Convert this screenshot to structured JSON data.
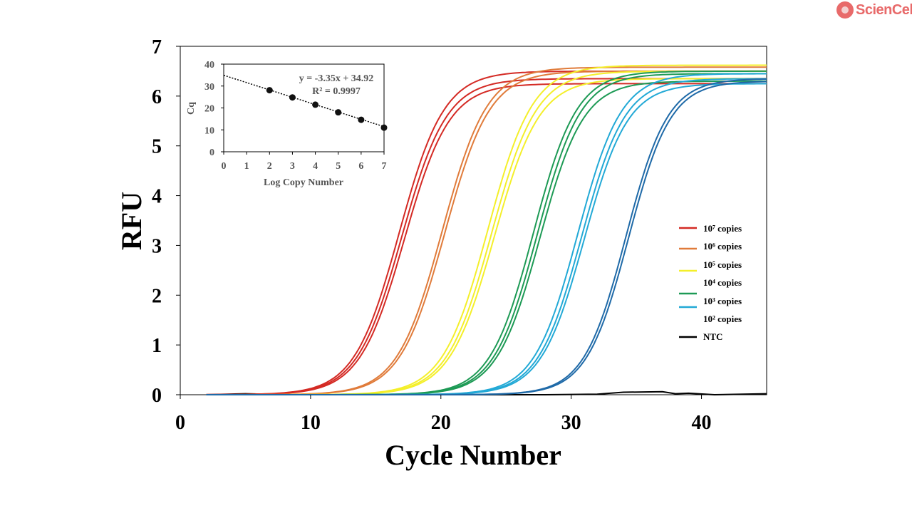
{
  "logo": {
    "text": "ScienCell",
    "color": "#e86a6a"
  },
  "chart_data": [
    {
      "type": "line",
      "xlabel": "Cycle Number",
      "ylabel": "RFU",
      "xlim": [
        0,
        45
      ],
      "ylim": [
        0,
        7
      ],
      "xticks": [
        "0",
        "10",
        "20",
        "30",
        "40"
      ],
      "yticks": [
        "0",
        "1",
        "2",
        "3",
        "4",
        "5",
        "6",
        "7"
      ],
      "grid": false,
      "legend_position": "right",
      "legend": [
        {
          "label": "10⁷ copies",
          "color": "#d42a24"
        },
        {
          "label": "10⁶ copies",
          "color": "#e07b3a"
        },
        {
          "label": "10⁵ copies",
          "color": "#f4ef2a"
        },
        {
          "label": "10⁴ copies",
          "color": null
        },
        {
          "label": "10³ copies",
          "color": "#1d9a55"
        },
        {
          "label": "10² copies",
          "color": "#22a9d6"
        },
        {
          "label": "NTC",
          "color": "#000000"
        }
      ],
      "curve_model": "sigmoid amplification: RFU = plateau / (1 + exp(-slope*(cycle - midpoint)))",
      "series": [
        {
          "group": "red",
          "color": "#d42a24",
          "slope": 0.58,
          "replicates": [
            {
              "midpoint": 16.8,
              "plateau": 6.5
            },
            {
              "midpoint": 17.0,
              "plateau": 6.35
            },
            {
              "midpoint": 17.2,
              "plateau": 6.25
            }
          ]
        },
        {
          "group": "orange",
          "color": "#e07b3a",
          "slope": 0.58,
          "replicates": [
            {
              "midpoint": 20.1,
              "plateau": 6.58
            },
            {
              "midpoint": 20.3,
              "plateau": 6.5
            }
          ]
        },
        {
          "group": "yellow",
          "color": "#f4ef2a",
          "slope": 0.58,
          "replicates": [
            {
              "midpoint": 23.6,
              "plateau": 6.62
            },
            {
              "midpoint": 23.9,
              "plateau": 6.5
            },
            {
              "midpoint": 24.1,
              "plateau": 6.35
            }
          ]
        },
        {
          "group": "green",
          "color": "#1d9a55",
          "slope": 0.6,
          "replicates": [
            {
              "midpoint": 27.1,
              "plateau": 6.5
            },
            {
              "midpoint": 27.4,
              "plateau": 6.45
            },
            {
              "midpoint": 27.6,
              "plateau": 6.3
            }
          ]
        },
        {
          "group": "cyan",
          "color": "#22a9d6",
          "slope": 0.6,
          "replicates": [
            {
              "midpoint": 30.5,
              "plateau": 6.45
            },
            {
              "midpoint": 30.8,
              "plateau": 6.35
            },
            {
              "midpoint": 31.0,
              "plateau": 6.25
            }
          ]
        },
        {
          "group": "blue",
          "color": "#1f6aa8",
          "slope": 0.62,
          "replicates": [
            {
              "midpoint": 34.2,
              "plateau": 6.35
            },
            {
              "midpoint": 34.4,
              "plateau": 6.3
            }
          ]
        }
      ],
      "ntc": {
        "color": "#000000",
        "x": [
          2,
          5,
          8,
          12,
          20,
          28,
          32,
          34,
          37,
          38,
          39,
          41,
          45
        ],
        "y": [
          0,
          0.02,
          0,
          0,
          0,
          0,
          0.01,
          0.05,
          0.06,
          0.02,
          0.03,
          0,
          0.02
        ]
      }
    },
    {
      "type": "scatter",
      "xlabel": "Log Copy Number",
      "ylabel": "Cq",
      "xlim": [
        0,
        7
      ],
      "ylim": [
        0,
        40
      ],
      "xticks": [
        "0",
        "1",
        "2",
        "3",
        "4",
        "5",
        "6",
        "7"
      ],
      "yticks": [
        "0",
        "10",
        "20",
        "30",
        "40"
      ],
      "x": [
        2,
        3,
        4,
        5,
        6,
        7
      ],
      "y": [
        28.1,
        24.8,
        21.5,
        18.0,
        14.6,
        11.0
      ],
      "trendline": {
        "slope": -3.35,
        "intercept": 34.92,
        "style": "dotted"
      },
      "equation": "y = -3.35x + 34.92",
      "r2": "R² = 0.9997"
    }
  ]
}
